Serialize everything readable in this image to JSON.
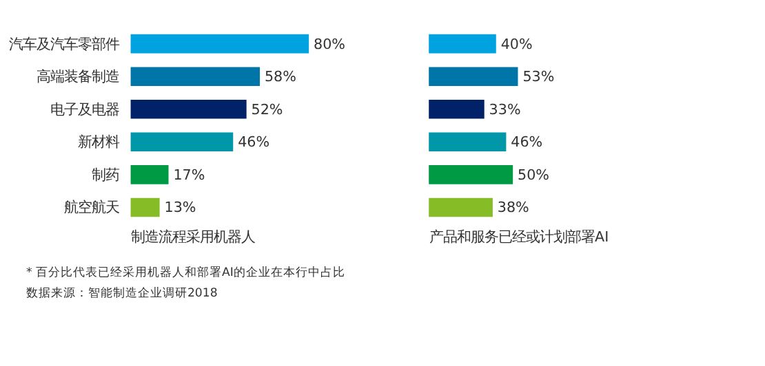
{
  "chart_data": [
    {
      "type": "bar",
      "orientation": "horizontal",
      "categories": [
        "汽车及汽车零部件",
        "高端装备制造",
        "电子及电器",
        "新材料",
        "制药",
        "航空航天"
      ],
      "values": [
        80,
        58,
        52,
        46,
        17,
        13
      ],
      "value_labels": [
        "80%",
        "58%",
        "52%",
        "46%",
        "17%",
        "13%"
      ],
      "colors": [
        "#00a3e0",
        "#0076a8",
        "#012169",
        "#0097a9",
        "#009a44",
        "#86bc25"
      ],
      "xlabel": "制造流程采用机器人",
      "tick_labels": "y",
      "annotations": [
        "* 百分比代表已经采用机器人和部署AI的企业在本行中占比",
        "数据来源：智能制造企业调研2018"
      ]
    },
    {
      "type": "bar",
      "orientation": "horizontal",
      "categories": [
        null,
        null,
        null,
        null,
        null,
        null
      ],
      "values": [
        40,
        53,
        33,
        46,
        50,
        38
      ],
      "value_labels": [
        "40%",
        "53%",
        "33%",
        "46%",
        "50%",
        "38%"
      ],
      "colors": [
        "#00a3e0",
        "#0076a8",
        "#012169",
        "#0097a9",
        "#009a44",
        "#86bc25"
      ],
      "xlabel": "产品和服务已经或计划部署AI",
      "tick_labels": false
    }
  ]
}
